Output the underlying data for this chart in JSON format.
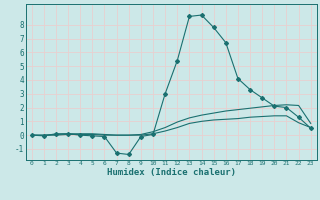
{
  "xlabel": "Humidex (Indice chaleur)",
  "background_color": "#cce8e8",
  "grid_color": "#e8d0d0",
  "line_color": "#1a7070",
  "xlim": [
    -0.5,
    23.5
  ],
  "ylim": [
    -1.8,
    9.5
  ],
  "xticks": [
    0,
    1,
    2,
    3,
    4,
    5,
    6,
    7,
    8,
    9,
    10,
    11,
    12,
    13,
    14,
    15,
    16,
    17,
    18,
    19,
    20,
    21,
    22,
    23
  ],
  "yticks": [
    -1,
    0,
    1,
    2,
    3,
    4,
    5,
    6,
    7,
    8
  ],
  "line1_x": [
    0,
    1,
    2,
    3,
    4,
    5,
    6,
    7,
    8,
    9,
    10,
    11,
    12,
    13,
    14,
    15,
    16,
    17,
    18,
    19,
    20,
    21,
    22,
    23
  ],
  "line1_y": [
    0.0,
    -0.05,
    0.1,
    0.1,
    0.0,
    -0.05,
    -0.1,
    -1.3,
    -1.4,
    -0.1,
    0.05,
    3.0,
    5.4,
    8.6,
    8.7,
    7.8,
    6.7,
    4.1,
    3.3,
    2.7,
    2.1,
    2.0,
    1.3,
    0.5
  ],
  "line2_x": [
    0,
    1,
    2,
    3,
    4,
    5,
    6,
    7,
    8,
    9,
    10,
    11,
    12,
    13,
    14,
    15,
    16,
    17,
    18,
    19,
    20,
    21,
    22,
    23
  ],
  "line2_y": [
    0.0,
    0.0,
    0.05,
    0.1,
    0.1,
    0.1,
    0.05,
    0.0,
    0.0,
    0.05,
    0.25,
    0.55,
    0.95,
    1.25,
    1.45,
    1.6,
    1.75,
    1.85,
    1.95,
    2.05,
    2.15,
    2.2,
    2.15,
    0.85
  ],
  "line3_x": [
    0,
    1,
    2,
    3,
    4,
    5,
    6,
    7,
    8,
    9,
    10,
    11,
    12,
    13,
    14,
    15,
    16,
    17,
    18,
    19,
    20,
    21,
    22,
    23
  ],
  "line3_y": [
    0.0,
    0.0,
    0.0,
    0.05,
    0.05,
    0.05,
    0.0,
    0.0,
    0.0,
    0.0,
    0.1,
    0.3,
    0.55,
    0.85,
    1.0,
    1.1,
    1.15,
    1.2,
    1.3,
    1.35,
    1.4,
    1.4,
    0.9,
    0.55
  ]
}
